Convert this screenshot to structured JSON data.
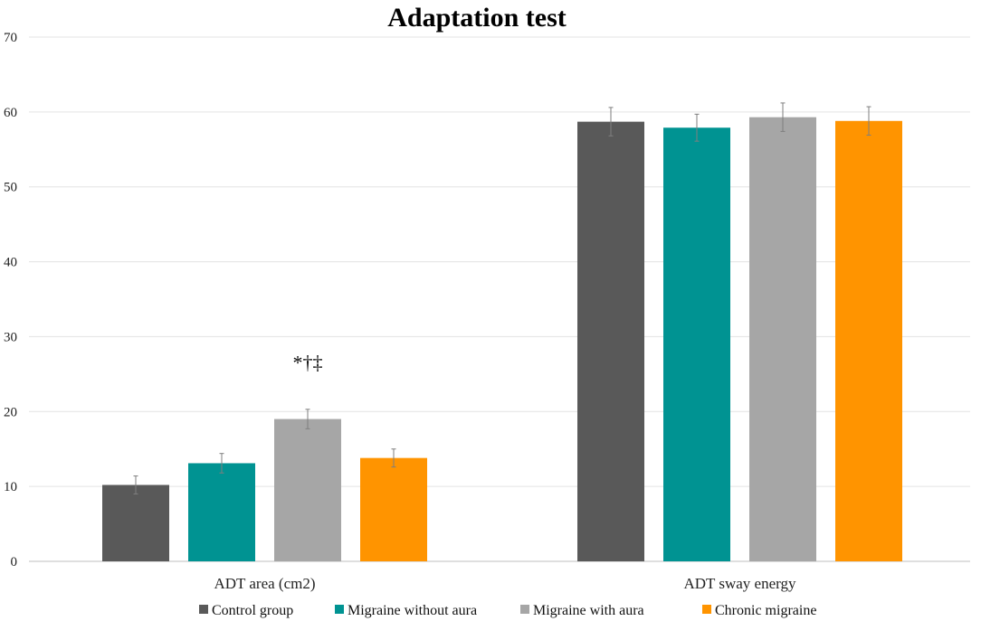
{
  "chart_data": {
    "type": "bar",
    "title": "Adaptation test",
    "xlabel": "",
    "ylabel": "",
    "ylim": [
      0,
      70
    ],
    "yticks": [
      0,
      10,
      20,
      30,
      40,
      50,
      60,
      70
    ],
    "grid": true,
    "legend_position": "bottom",
    "categories": [
      "ADT area (cm2)",
      "ADT sway energy"
    ],
    "series": [
      {
        "name": "Control group",
        "color": "#595959",
        "values": [
          10.2,
          58.7
        ],
        "errors": [
          1.2,
          1.9
        ]
      },
      {
        "name": "Migraine without aura",
        "color": "#009392",
        "values": [
          13.1,
          57.9
        ],
        "errors": [
          1.3,
          1.8
        ]
      },
      {
        "name": "Migraine with aura",
        "color": "#a6a6a6",
        "values": [
          19.0,
          59.3
        ],
        "errors": [
          1.3,
          1.9
        ]
      },
      {
        "name": "Chronic migraine",
        "color": "#ff9400",
        "values": [
          13.8,
          58.8
        ],
        "errors": [
          1.2,
          1.9
        ]
      }
    ],
    "annotations": [
      {
        "text": "*†‡",
        "category_index": 0,
        "series_index": 2,
        "y": 26.5
      }
    ]
  }
}
